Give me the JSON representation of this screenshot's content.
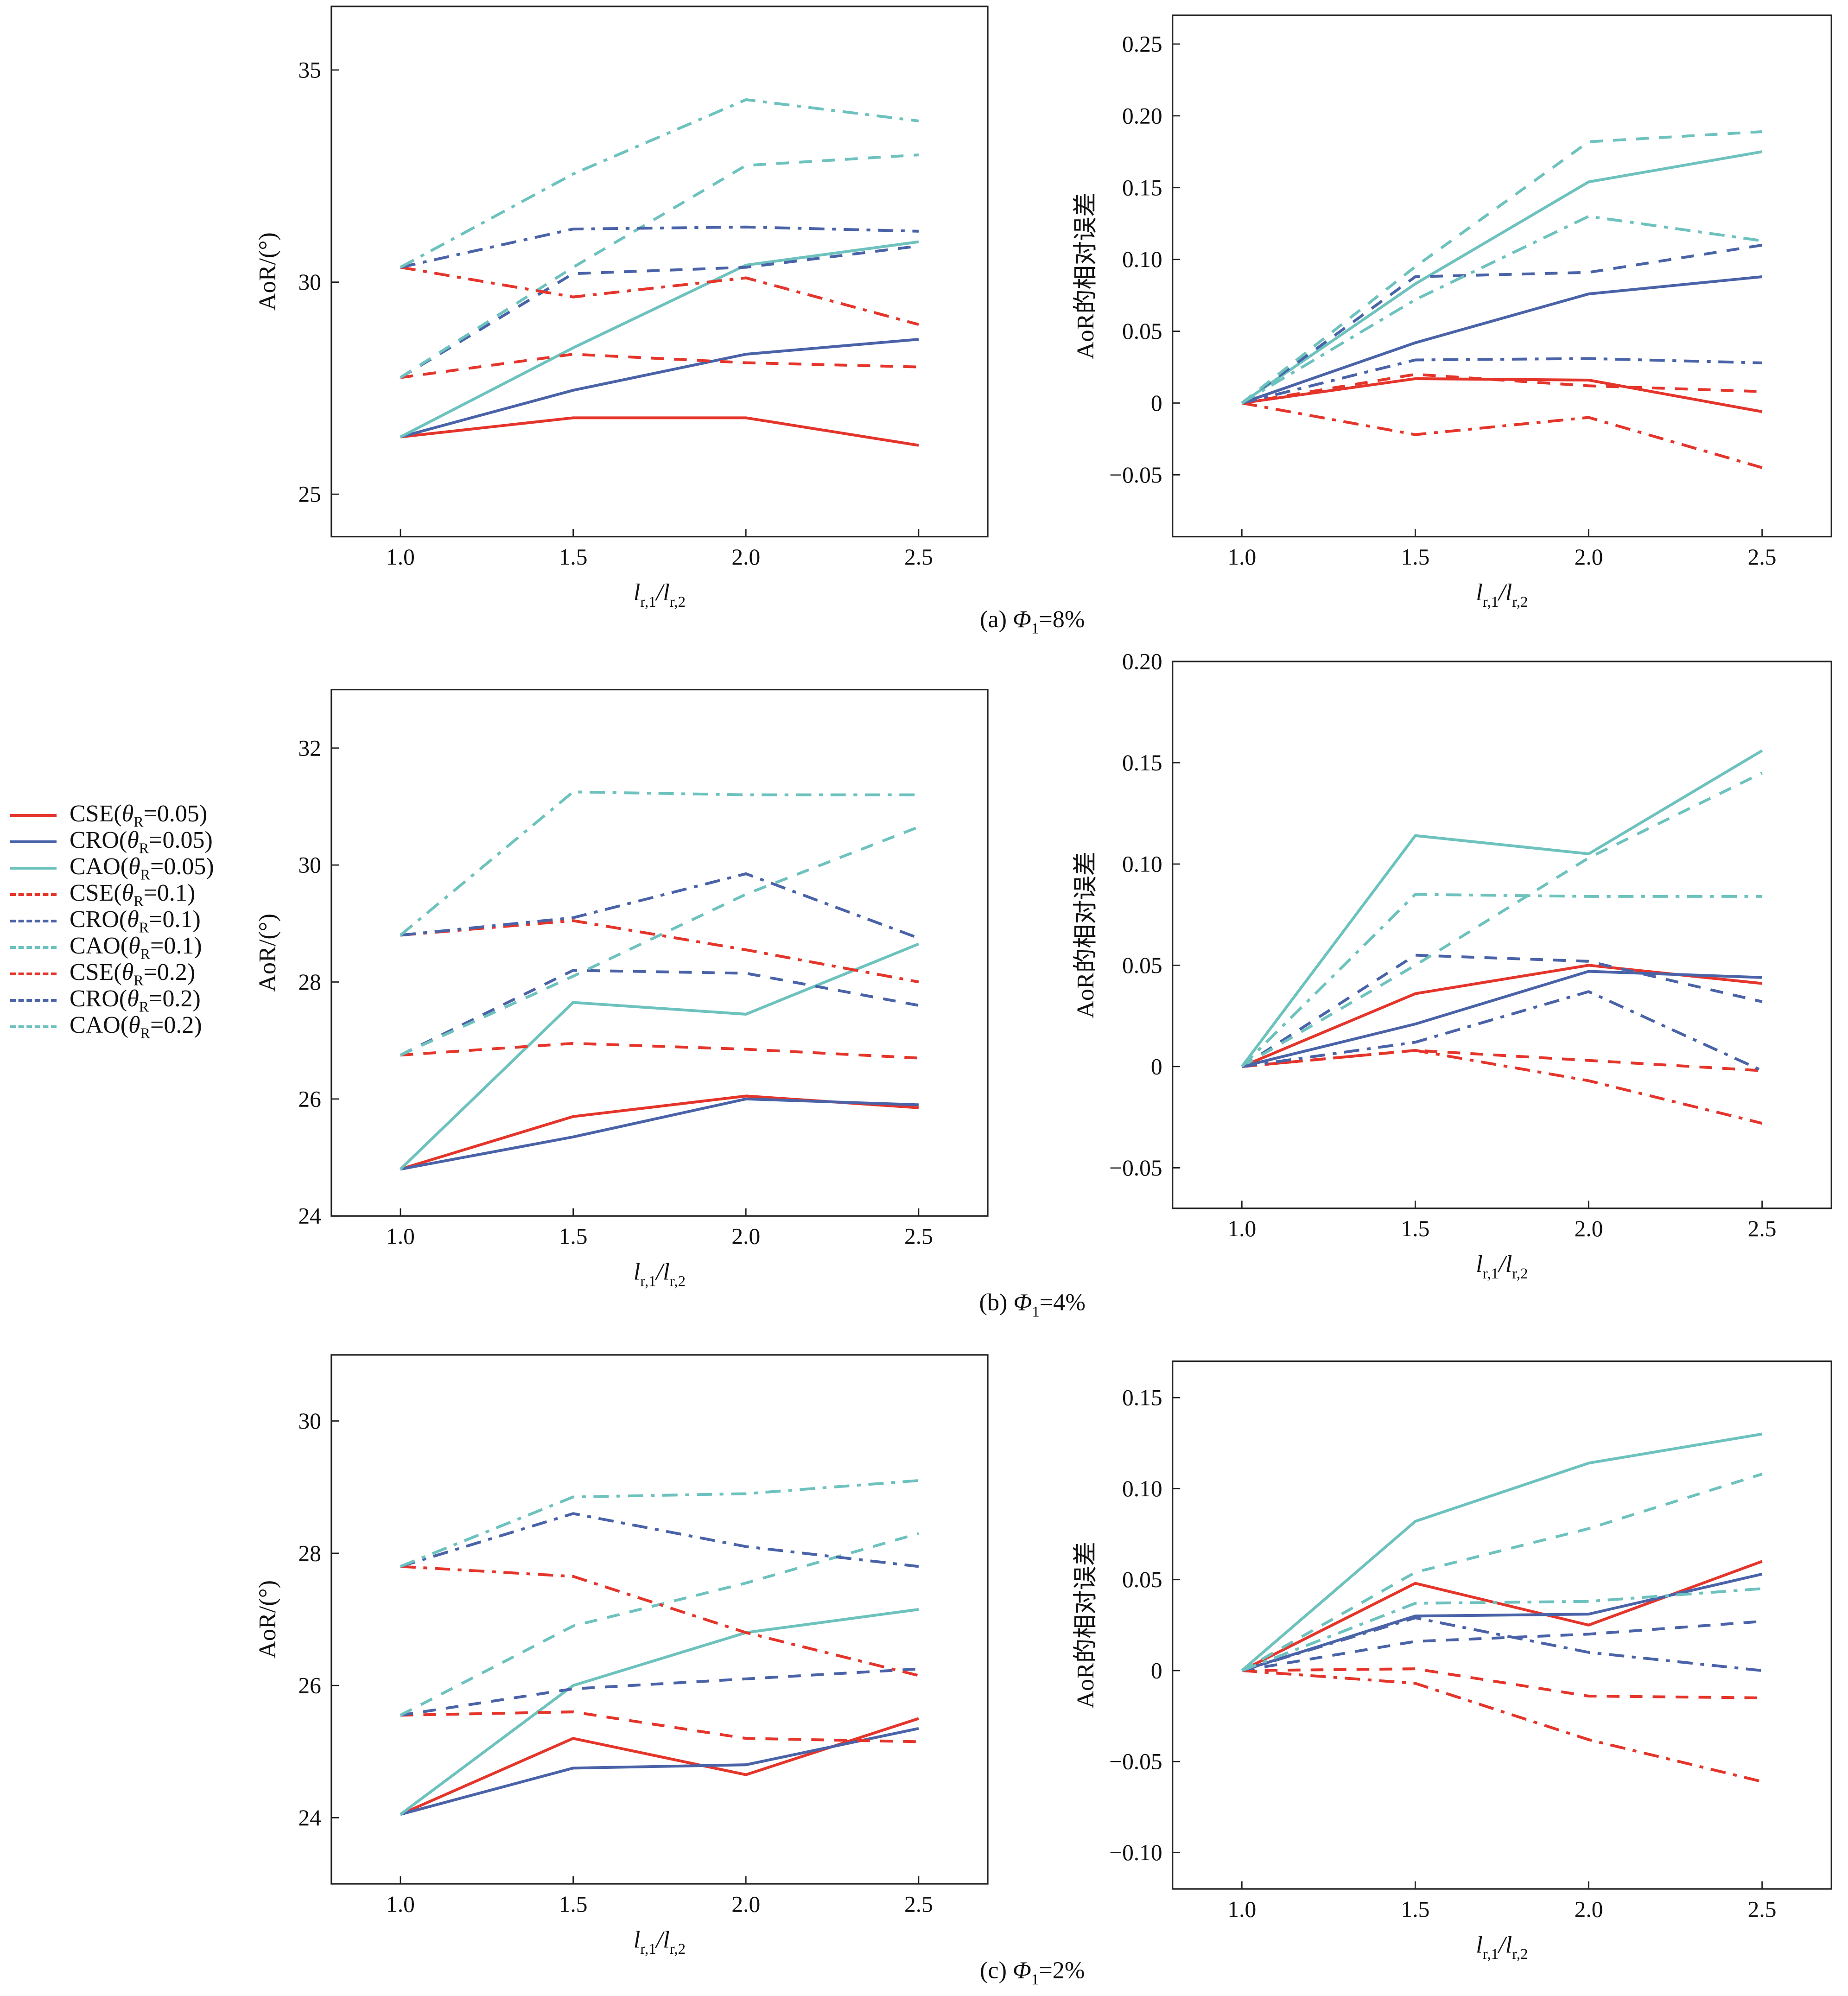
{
  "colors": {
    "CSE": "#e5352b",
    "CRO": "#4a63a8",
    "CAO": "#6dc2be",
    "axis": "#222222"
  },
  "legend": [
    {
      "method": "CSE",
      "theta_symbol": "θ",
      "theta_sub": "R",
      "value": "=0.05)",
      "prefix": "CSE(",
      "style": "solid"
    },
    {
      "method": "CRO",
      "theta_symbol": "θ",
      "theta_sub": "R",
      "value": "=0.05)",
      "prefix": "CRO(",
      "style": "solid"
    },
    {
      "method": "CAO",
      "theta_symbol": "θ",
      "theta_sub": "R",
      "value": "=0.05)",
      "prefix": "CAO(",
      "style": "solid"
    },
    {
      "method": "CSE",
      "theta_symbol": "θ",
      "theta_sub": "R",
      "value": "=0.1)",
      "prefix": "CSE(",
      "style": "dashed"
    },
    {
      "method": "CRO",
      "theta_symbol": "θ",
      "theta_sub": "R",
      "value": "=0.1)",
      "prefix": "CRO(",
      "style": "dashed"
    },
    {
      "method": "CAO",
      "theta_symbol": "θ",
      "theta_sub": "R",
      "value": "=0.1)",
      "prefix": "CAO(",
      "style": "dashed"
    },
    {
      "method": "CSE",
      "theta_symbol": "θ",
      "theta_sub": "R",
      "value": "=0.2)",
      "prefix": "CSE(",
      "style": "dashdot"
    },
    {
      "method": "CRO",
      "theta_symbol": "θ",
      "theta_sub": "R",
      "value": "=0.2)",
      "prefix": "CRO(",
      "style": "dashdot"
    },
    {
      "method": "CAO",
      "theta_symbol": "θ",
      "theta_sub": "R",
      "value": "=0.2)",
      "prefix": "CAO(",
      "style": "dashdot"
    }
  ],
  "captions": [
    {
      "tag": "(a) ",
      "symbol": "Φ",
      "sub": "1",
      "value": "=8%"
    },
    {
      "tag": "(b) ",
      "symbol": "Φ",
      "sub": "1",
      "value": "=4%"
    },
    {
      "tag": "(c) ",
      "symbol": "Φ",
      "sub": "1",
      "value": "=2%"
    }
  ],
  "xlabel": {
    "l1": "l",
    "s1": "r,1",
    "slash": "/",
    "l2": "l",
    "s2": "r,2"
  },
  "chart_data": [
    {
      "type": "line",
      "panel": "(a) left",
      "ylabel": "AoR/(°)",
      "x": [
        1.0,
        1.5,
        2.0,
        2.5
      ],
      "xticks": [
        "1.0",
        "1.5",
        "2.0",
        "2.5"
      ],
      "xlim": [
        0.8,
        2.7
      ],
      "ylim": [
        24.0,
        36.5
      ],
      "yticks": [
        25,
        30,
        35
      ],
      "ytick_labels": [
        "25",
        "30",
        "35"
      ],
      "series": [
        {
          "name": "CSE(θR=0.05)",
          "values": [
            26.35,
            26.8,
            26.8,
            26.15
          ]
        },
        {
          "name": "CRO(θR=0.05)",
          "values": [
            26.35,
            27.45,
            28.3,
            28.65
          ]
        },
        {
          "name": "CAO(θR=0.05)",
          "values": [
            26.35,
            28.45,
            30.4,
            30.95
          ]
        },
        {
          "name": "CSE(θR=0.1)",
          "values": [
            27.75,
            28.3,
            28.1,
            28.0
          ]
        },
        {
          "name": "CRO(θR=0.1)",
          "values": [
            27.75,
            30.2,
            30.35,
            30.85
          ]
        },
        {
          "name": "CAO(θR=0.1)",
          "values": [
            27.75,
            30.35,
            32.75,
            33.0
          ]
        },
        {
          "name": "CSE(θR=0.2)",
          "values": [
            30.35,
            29.65,
            30.1,
            29.0
          ]
        },
        {
          "name": "CRO(θR=0.2)",
          "values": [
            30.35,
            31.25,
            31.3,
            31.2
          ]
        },
        {
          "name": "CAO(θR=0.2)",
          "values": [
            30.35,
            32.55,
            34.3,
            33.8
          ]
        }
      ]
    },
    {
      "type": "line",
      "panel": "(a) right",
      "ylabel": "AoR的相对误差",
      "x": [
        1.0,
        1.5,
        2.0,
        2.5
      ],
      "xticks": [
        "1.0",
        "1.5",
        "2.0",
        "2.5"
      ],
      "xlim": [
        0.8,
        2.7
      ],
      "ylim": [
        -0.093,
        0.27
      ],
      "yticks": [
        -0.05,
        0,
        0.05,
        0.1,
        0.15,
        0.2,
        0.25
      ],
      "ytick_labels": [
        "−0.05",
        "0",
        "0.05",
        "0.10",
        "0.15",
        "0.20",
        "0.25"
      ],
      "series": [
        {
          "name": "CSE(θR=0.05)",
          "values": [
            0,
            0.017,
            0.016,
            -0.006
          ]
        },
        {
          "name": "CRO(θR=0.05)",
          "values": [
            0,
            0.042,
            0.076,
            0.088
          ]
        },
        {
          "name": "CAO(θR=0.05)",
          "values": [
            0,
            0.083,
            0.154,
            0.175
          ]
        },
        {
          "name": "CSE(θR=0.1)",
          "values": [
            0,
            0.02,
            0.012,
            0.008
          ]
        },
        {
          "name": "CRO(θR=0.1)",
          "values": [
            0,
            0.088,
            0.091,
            0.11
          ]
        },
        {
          "name": "CAO(θR=0.1)",
          "values": [
            0,
            0.095,
            0.182,
            0.189
          ]
        },
        {
          "name": "CSE(θR=0.2)",
          "values": [
            0,
            -0.022,
            -0.01,
            -0.045
          ]
        },
        {
          "name": "CRO(θR=0.2)",
          "values": [
            0,
            0.03,
            0.031,
            0.028
          ]
        },
        {
          "name": "CAO(θR=0.2)",
          "values": [
            0,
            0.072,
            0.13,
            0.113
          ]
        }
      ]
    },
    {
      "type": "line",
      "panel": "(b) left",
      "ylabel": "AoR/(°)",
      "x": [
        1.0,
        1.5,
        2.0,
        2.5
      ],
      "xticks": [
        "1.0",
        "1.5",
        "2.0",
        "2.5"
      ],
      "xlim": [
        0.8,
        2.7
      ],
      "ylim": [
        24.0,
        33.0
      ],
      "yticks": [
        24,
        26,
        28,
        30,
        32
      ],
      "ytick_labels": [
        "24",
        "26",
        "28",
        "30",
        "32"
      ],
      "series": [
        {
          "name": "CSE(θR=0.05)",
          "values": [
            24.8,
            25.7,
            26.05,
            25.85
          ]
        },
        {
          "name": "CRO(θR=0.05)",
          "values": [
            24.8,
            25.35,
            26.0,
            25.9
          ]
        },
        {
          "name": "CAO(θR=0.05)",
          "values": [
            24.8,
            27.65,
            27.45,
            28.65
          ]
        },
        {
          "name": "CSE(θR=0.1)",
          "values": [
            26.75,
            26.95,
            26.85,
            26.7
          ]
        },
        {
          "name": "CRO(θR=0.1)",
          "values": [
            26.75,
            28.2,
            28.15,
            27.6
          ]
        },
        {
          "name": "CAO(θR=0.1)",
          "values": [
            26.75,
            28.1,
            29.5,
            30.65
          ]
        },
        {
          "name": "CSE(θR=0.2)",
          "values": [
            28.8,
            29.05,
            28.55,
            28.0
          ]
        },
        {
          "name": "CRO(θR=0.2)",
          "values": [
            28.8,
            29.1,
            29.85,
            28.75
          ]
        },
        {
          "name": "CAO(θR=0.2)",
          "values": [
            28.8,
            31.25,
            31.2,
            31.2
          ]
        }
      ]
    },
    {
      "type": "line",
      "panel": "(b) right",
      "ylabel": "AoR的相对误差",
      "x": [
        1.0,
        1.5,
        2.0,
        2.5
      ],
      "xticks": [
        "1.0",
        "1.5",
        "2.0",
        "2.5"
      ],
      "xlim": [
        0.8,
        2.7
      ],
      "ylim": [
        -0.07,
        0.2
      ],
      "yticks": [
        -0.05,
        0,
        0.05,
        0.1,
        0.15,
        0.2
      ],
      "ytick_labels": [
        "−0.05",
        "0",
        "0.05",
        "0.10",
        "0.15",
        "0.20"
      ],
      "series": [
        {
          "name": "CSE(θR=0.05)",
          "values": [
            0,
            0.036,
            0.05,
            0.041
          ]
        },
        {
          "name": "CRO(θR=0.05)",
          "values": [
            0,
            0.021,
            0.047,
            0.044
          ]
        },
        {
          "name": "CAO(θR=0.05)",
          "values": [
            0,
            0.114,
            0.105,
            0.156
          ]
        },
        {
          "name": "CSE(θR=0.1)",
          "values": [
            0,
            0.008,
            0.003,
            -0.002
          ]
        },
        {
          "name": "CRO(θR=0.1)",
          "values": [
            0,
            0.055,
            0.052,
            0.032
          ]
        },
        {
          "name": "CAO(θR=0.1)",
          "values": [
            0,
            0.05,
            0.103,
            0.145
          ]
        },
        {
          "name": "CSE(θR=0.2)",
          "values": [
            0,
            0.008,
            -0.007,
            -0.028
          ]
        },
        {
          "name": "CRO(θR=0.2)",
          "values": [
            0,
            0.012,
            0.037,
            -0.002
          ]
        },
        {
          "name": "CAO(θR=0.2)",
          "values": [
            0,
            0.085,
            0.084,
            0.084
          ]
        }
      ]
    },
    {
      "type": "line",
      "panel": "(c) left",
      "ylabel": "AoR/(°)",
      "x": [
        1.0,
        1.5,
        2.0,
        2.5
      ],
      "xticks": [
        "1.0",
        "1.5",
        "2.0",
        "2.5"
      ],
      "xlim": [
        0.8,
        2.7
      ],
      "ylim": [
        23.0,
        31.0
      ],
      "yticks": [
        24,
        26,
        28,
        30
      ],
      "ytick_labels": [
        "24",
        "26",
        "28",
        "30"
      ],
      "series": [
        {
          "name": "CSE(θR=0.05)",
          "values": [
            24.05,
            25.2,
            24.65,
            25.5
          ]
        },
        {
          "name": "CRO(θR=0.05)",
          "values": [
            24.05,
            24.75,
            24.8,
            25.35
          ]
        },
        {
          "name": "CAO(θR=0.05)",
          "values": [
            24.05,
            26.0,
            26.8,
            27.15
          ]
        },
        {
          "name": "CSE(θR=0.1)",
          "values": [
            25.55,
            25.6,
            25.2,
            25.15
          ]
        },
        {
          "name": "CRO(θR=0.1)",
          "values": [
            25.55,
            25.95,
            26.1,
            26.25
          ]
        },
        {
          "name": "CAO(θR=0.1)",
          "values": [
            25.55,
            26.9,
            27.55,
            28.3
          ]
        },
        {
          "name": "CSE(θR=0.2)",
          "values": [
            27.8,
            27.65,
            26.8,
            26.15
          ]
        },
        {
          "name": "CRO(θR=0.2)",
          "values": [
            27.8,
            28.6,
            28.1,
            27.8
          ]
        },
        {
          "name": "CAO(θR=0.2)",
          "values": [
            27.8,
            28.85,
            28.9,
            29.1
          ]
        }
      ]
    },
    {
      "type": "line",
      "panel": "(c) right",
      "ylabel": "AoR的相对误差",
      "x": [
        1.0,
        1.5,
        2.0,
        2.5
      ],
      "xticks": [
        "1.0",
        "1.5",
        "2.0",
        "2.5"
      ],
      "xlim": [
        0.8,
        2.7
      ],
      "ylim": [
        -0.12,
        0.17
      ],
      "yticks": [
        -0.1,
        -0.05,
        0,
        0.05,
        0.1,
        0.15
      ],
      "ytick_labels": [
        "−0.10",
        "−0.05",
        "0",
        "0.05",
        "0.10",
        "0.15"
      ],
      "series": [
        {
          "name": "CSE(θR=0.05)",
          "values": [
            0,
            0.048,
            0.025,
            0.06
          ]
        },
        {
          "name": "CRO(θR=0.05)",
          "values": [
            0,
            0.03,
            0.031,
            0.053
          ]
        },
        {
          "name": "CAO(θR=0.05)",
          "values": [
            0,
            0.082,
            0.114,
            0.13
          ]
        },
        {
          "name": "CSE(θR=0.1)",
          "values": [
            0,
            0.001,
            -0.014,
            -0.015
          ]
        },
        {
          "name": "CRO(θR=0.1)",
          "values": [
            0,
            0.016,
            0.02,
            0.027
          ]
        },
        {
          "name": "CAO(θR=0.1)",
          "values": [
            0,
            0.054,
            0.078,
            0.108
          ]
        },
        {
          "name": "CSE(θR=0.2)",
          "values": [
            0,
            -0.007,
            -0.038,
            -0.061
          ]
        },
        {
          "name": "CRO(θR=0.2)",
          "values": [
            0,
            0.029,
            0.01,
            0.0
          ]
        },
        {
          "name": "CAO(θR=0.2)",
          "values": [
            0,
            0.037,
            0.038,
            0.045
          ]
        }
      ]
    }
  ]
}
